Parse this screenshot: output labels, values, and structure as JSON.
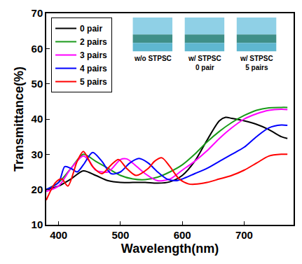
{
  "chart_data": {
    "type": "line",
    "x_label": "Wavelength(nm)",
    "y_label": "Transmittance(%)",
    "xlim": [
      380,
      780
    ],
    "xticks": [
      400,
      500,
      600,
      700
    ],
    "ylim": [
      10,
      70
    ],
    "yticks": [
      10,
      20,
      30,
      40,
      50,
      60,
      70
    ],
    "grid": false,
    "legend": "top-left",
    "annotations": [
      "w/o STPSC",
      "w/ STPSC\n0 pair",
      "w/ STPSC\n5 pairs"
    ],
    "series": [
      {
        "name": "0 pair",
        "color": "#000000",
        "x": [
          380,
          400,
          420,
          440,
          460,
          480,
          500,
          520,
          540,
          560,
          580,
          600,
          620,
          640,
          660,
          670,
          680,
          700,
          720,
          740,
          760,
          770
        ],
        "values": [
          20,
          21,
          23,
          25.3,
          24,
          22.5,
          22,
          22,
          22,
          21.8,
          22.2,
          24,
          28,
          34,
          39.5,
          40.5,
          40.2,
          39.5,
          38.5,
          37,
          35,
          34.5
        ]
      },
      {
        "name": "2 pairs",
        "color": "#1a9a1a",
        "x": [
          380,
          400,
          420,
          440,
          460,
          480,
          500,
          520,
          540,
          560,
          580,
          600,
          620,
          640,
          660,
          680,
          700,
          720,
          740,
          760,
          770
        ],
        "values": [
          20,
          22,
          26,
          30,
          28,
          26,
          24,
          23,
          22.8,
          23.5,
          25,
          27,
          30,
          33.5,
          36.5,
          39,
          41,
          42.5,
          43.2,
          43.3,
          43.3
        ]
      },
      {
        "name": "3 pairs",
        "color": "#ff00ff",
        "x": [
          380,
          400,
          420,
          440,
          450,
          460,
          480,
          500,
          510,
          520,
          540,
          560,
          580,
          600,
          620,
          640,
          660,
          680,
          700,
          720,
          740,
          760,
          770
        ],
        "values": [
          19.5,
          21,
          26,
          29.5,
          28,
          25.5,
          25,
          28.5,
          28.7,
          27.5,
          24.5,
          22.5,
          23,
          25.5,
          28,
          31,
          34.5,
          37.5,
          40,
          41.5,
          42.5,
          42.8,
          42.7
        ]
      },
      {
        "name": "4 pairs",
        "color": "#0000ff",
        "x": [
          380,
          400,
          410,
          420,
          430,
          440,
          455,
          470,
          485,
          500,
          515,
          530,
          545,
          560,
          575,
          590,
          600,
          620,
          640,
          660,
          680,
          700,
          720,
          740,
          760,
          770
        ],
        "values": [
          20,
          22,
          26.5,
          26,
          25,
          27,
          30.5,
          28,
          24.5,
          25,
          27.5,
          28.8,
          27.5,
          25,
          23,
          22.5,
          23,
          24.5,
          26,
          28,
          30,
          32,
          35,
          37.5,
          38.3,
          38.2
        ]
      },
      {
        "name": "5 pairs",
        "color": "#ff0000",
        "x": [
          380,
          395,
          405,
          415,
          430,
          440,
          455,
          470,
          485,
          497,
          510,
          525,
          545,
          555,
          567,
          580,
          595,
          610,
          620,
          640,
          660,
          680,
          700,
          720,
          740,
          760,
          770
        ],
        "values": [
          17,
          22,
          23,
          21,
          28,
          30.8,
          26.5,
          24.5,
          27,
          28.5,
          26,
          24,
          26,
          28,
          29,
          26.5,
          23,
          21.6,
          21.5,
          22,
          23,
          24,
          25.5,
          27.5,
          29.5,
          30,
          30
        ]
      }
    ]
  }
}
